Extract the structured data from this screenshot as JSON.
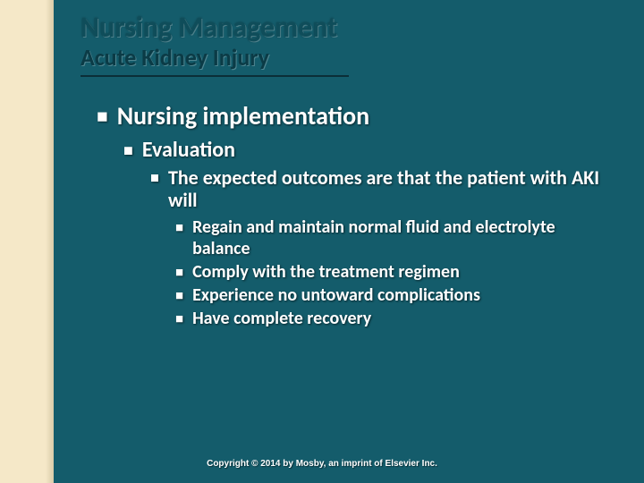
{
  "colors": {
    "bg_main": "#145c6b",
    "bg_left_light": "#f5e8c8",
    "bg_left_dark": "#d9cba8",
    "title_color": "#0f4d5a",
    "subtitle_color": "#0b3b46",
    "underline_color": "#0b2e38",
    "body_text": "#ffffff"
  },
  "title": "Nursing Management",
  "subtitle": "Acute Kidney Injury",
  "level1": "Nursing implementation",
  "level2": "Evaluation",
  "level3": "The expected outcomes are that the patient with AKI will",
  "level4": {
    "item1": "Regain and maintain normal fluid and electrolyte balance",
    "item2": "Comply with the treatment regimen",
    "item3": "Experience no untoward complications",
    "item4": "Have complete recovery"
  },
  "footer": "Copyright © 2014 by Mosby, an imprint of Elsevier Inc.",
  "bullet_char": "■"
}
